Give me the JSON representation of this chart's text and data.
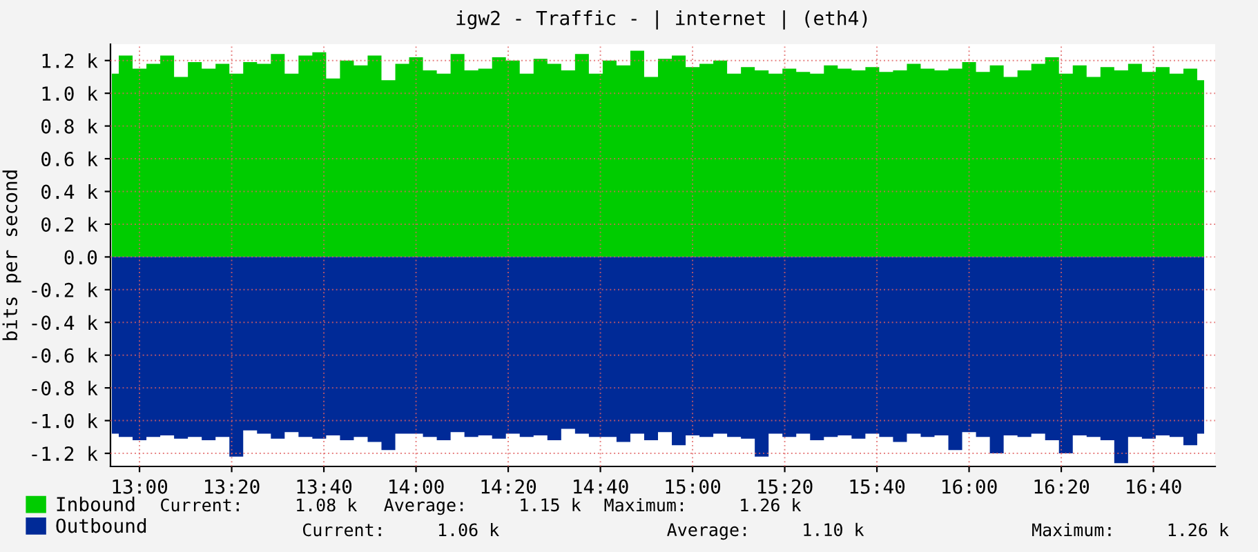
{
  "chart_data": {
    "type": "area",
    "title": "igw2 - Traffic - | internet | (eth4)",
    "ylabel": "bits per second",
    "x": [
      12.9,
      12.95,
      13.0,
      13.05,
      13.1,
      13.15,
      13.2,
      13.25,
      13.3,
      13.35,
      13.4,
      13.45,
      13.5,
      13.55,
      13.6,
      13.65,
      13.7,
      13.75,
      13.8,
      13.85,
      13.9,
      13.95,
      14.0,
      14.05,
      14.1,
      14.15,
      14.2,
      14.25,
      14.3,
      14.35,
      14.4,
      14.45,
      14.5,
      14.55,
      14.6,
      14.65,
      14.7,
      14.75,
      14.8,
      14.85,
      14.9,
      14.95,
      15.0,
      15.05,
      15.1,
      15.15,
      15.2,
      15.25,
      15.3,
      15.35,
      15.4,
      15.45,
      15.5,
      15.55,
      15.6,
      15.65,
      15.7,
      15.75,
      15.8,
      15.85,
      15.9,
      15.95,
      16.0,
      16.05,
      16.1,
      16.15,
      16.2,
      16.25,
      16.3,
      16.35,
      16.4,
      16.45,
      16.5,
      16.55,
      16.6,
      16.65,
      16.7,
      16.75,
      16.8,
      16.85
    ],
    "series": [
      {
        "name": "Inbound",
        "color": "#00cc00",
        "values": [
          1.12,
          1.23,
          1.15,
          1.18,
          1.23,
          1.1,
          1.19,
          1.15,
          1.18,
          1.12,
          1.19,
          1.18,
          1.24,
          1.12,
          1.23,
          1.25,
          1.09,
          1.2,
          1.17,
          1.23,
          1.08,
          1.18,
          1.22,
          1.14,
          1.12,
          1.24,
          1.14,
          1.15,
          1.22,
          1.2,
          1.12,
          1.21,
          1.18,
          1.14,
          1.24,
          1.12,
          1.2,
          1.17,
          1.26,
          1.1,
          1.21,
          1.23,
          1.16,
          1.18,
          1.2,
          1.12,
          1.16,
          1.14,
          1.12,
          1.15,
          1.13,
          1.12,
          1.17,
          1.15,
          1.14,
          1.16,
          1.13,
          1.14,
          1.18,
          1.15,
          1.14,
          1.15,
          1.19,
          1.13,
          1.17,
          1.1,
          1.14,
          1.18,
          1.22,
          1.12,
          1.17,
          1.1,
          1.16,
          1.14,
          1.18,
          1.13,
          1.16,
          1.12,
          1.15,
          1.08
        ]
      },
      {
        "name": "Outbound",
        "color": "#002a97",
        "values": [
          -1.08,
          -1.1,
          -1.12,
          -1.1,
          -1.09,
          -1.11,
          -1.1,
          -1.12,
          -1.1,
          -1.22,
          -1.06,
          -1.08,
          -1.11,
          -1.07,
          -1.1,
          -1.11,
          -1.09,
          -1.12,
          -1.1,
          -1.13,
          -1.18,
          -1.08,
          -1.08,
          -1.1,
          -1.12,
          -1.07,
          -1.1,
          -1.09,
          -1.11,
          -1.08,
          -1.1,
          -1.09,
          -1.12,
          -1.05,
          -1.08,
          -1.1,
          -1.1,
          -1.13,
          -1.08,
          -1.12,
          -1.07,
          -1.15,
          -1.09,
          -1.1,
          -1.08,
          -1.1,
          -1.11,
          -1.22,
          -1.08,
          -1.1,
          -1.08,
          -1.12,
          -1.1,
          -1.09,
          -1.11,
          -1.08,
          -1.1,
          -1.13,
          -1.08,
          -1.1,
          -1.09,
          -1.18,
          -1.07,
          -1.1,
          -1.2,
          -1.09,
          -1.1,
          -1.08,
          -1.12,
          -1.2,
          -1.09,
          -1.1,
          -1.12,
          -1.26,
          -1.1,
          -1.11,
          -1.09,
          -1.1,
          -1.15,
          -1.08
        ]
      }
    ],
    "xlim": [
      12.895,
      16.89
    ],
    "xticks": [
      {
        "value": 13.0,
        "label": "13:00"
      },
      {
        "value": 13.3333,
        "label": "13:20"
      },
      {
        "value": 13.6667,
        "label": "13:40"
      },
      {
        "value": 14.0,
        "label": "14:00"
      },
      {
        "value": 14.3333,
        "label": "14:20"
      },
      {
        "value": 14.6667,
        "label": "14:40"
      },
      {
        "value": 15.0,
        "label": "15:00"
      },
      {
        "value": 15.3333,
        "label": "15:20"
      },
      {
        "value": 15.6667,
        "label": "15:40"
      },
      {
        "value": 16.0,
        "label": "16:00"
      },
      {
        "value": 16.3333,
        "label": "16:20"
      },
      {
        "value": 16.6667,
        "label": "16:40"
      }
    ],
    "ylim": [
      -1.28,
      1.3
    ],
    "yticks": [
      {
        "value": -1.2,
        "label": "-1.2 k"
      },
      {
        "value": -1.0,
        "label": "-1.0 k"
      },
      {
        "value": -0.8,
        "label": "-0.8 k"
      },
      {
        "value": -0.6,
        "label": "-0.6 k"
      },
      {
        "value": -0.4,
        "label": "-0.4 k"
      },
      {
        "value": -0.2,
        "label": "-0.2 k"
      },
      {
        "value": 0.0,
        "label": "0.0"
      },
      {
        "value": 0.2,
        "label": "0.2 k"
      },
      {
        "value": 0.4,
        "label": "0.4 k"
      },
      {
        "value": 0.6,
        "label": "0.6 k"
      },
      {
        "value": 0.8,
        "label": "0.8 k"
      },
      {
        "value": 1.0,
        "label": "1.0 k"
      },
      {
        "value": 1.2,
        "label": "1.2 k"
      }
    ],
    "grid": true,
    "legend": "bottom left",
    "annotations": [
      "Current:     1.08 k",
      "Average:     1.15 k",
      "Maximum:     1.26 k",
      "Current:     1.06 k",
      "Average:     1.10 k",
      "Maximum:     1.26 k"
    ]
  }
}
